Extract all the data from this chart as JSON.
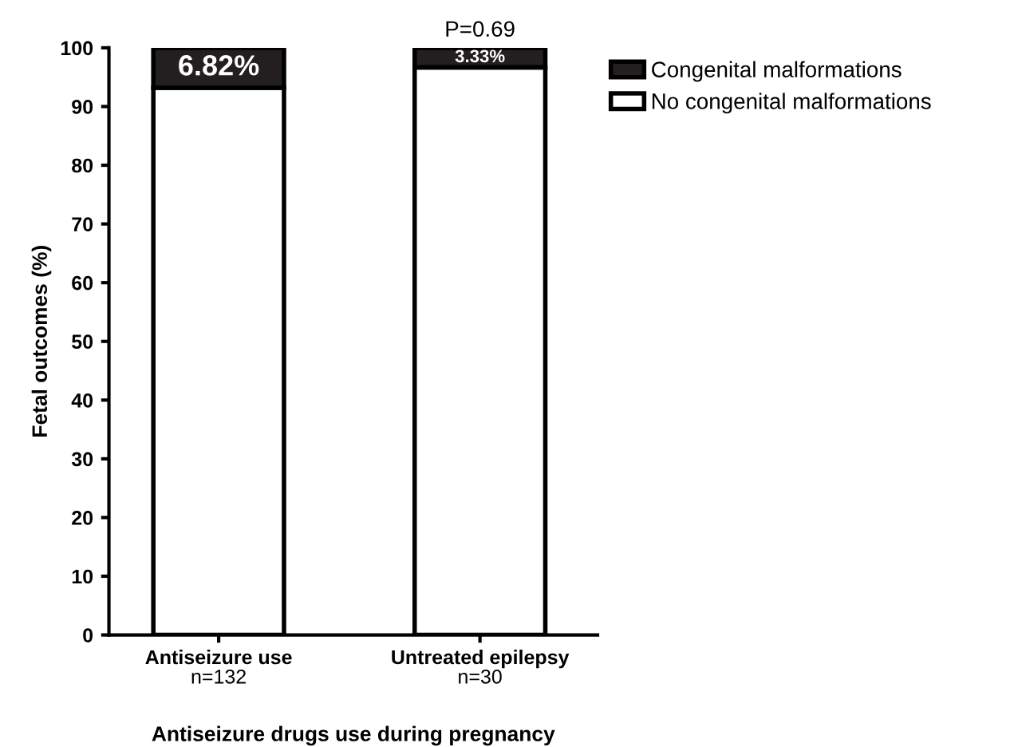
{
  "chart_data": {
    "type": "bar",
    "stacked": true,
    "xlabel": "Antiseizure drugs use during pregnancy",
    "ylabel": "Fetal outcomes (%)",
    "categories": [
      "Antiseizure use\nn=132",
      "Untreated epilepsy\nn=30"
    ],
    "series": [
      {
        "name": "No congenital malformations",
        "color": "#ffffff",
        "values": [
          93.18,
          96.67
        ]
      },
      {
        "name": "Congenital malformations",
        "color": "#231f20",
        "values": [
          6.82,
          3.33
        ],
        "value_labels": [
          "6.82%",
          "3.33%"
        ]
      }
    ],
    "ylim": [
      0,
      100
    ],
    "yticks": [
      0,
      10,
      20,
      30,
      40,
      50,
      60,
      70,
      80,
      90,
      100
    ],
    "grid": false,
    "legend": "top right",
    "annotations": [
      {
        "text": "P=0.69",
        "x": "Untreated epilepsy\nn=30",
        "y": 100
      }
    ]
  }
}
